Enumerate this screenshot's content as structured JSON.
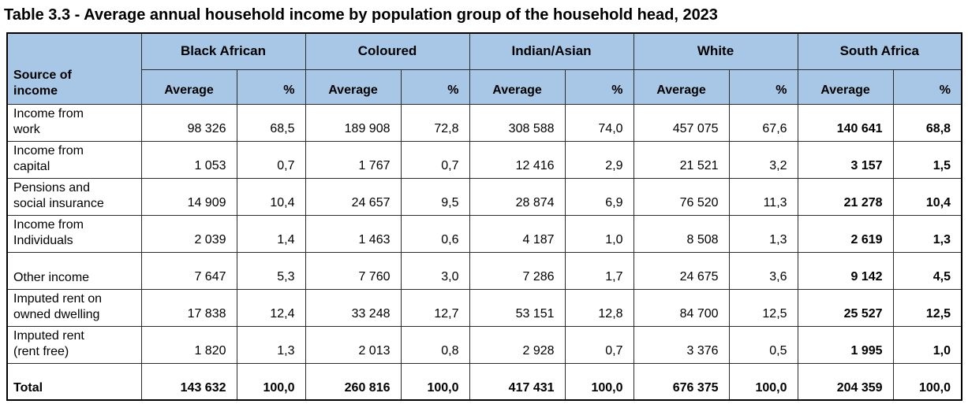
{
  "title": "Table 3.3 - Average annual household income by population group of the household head, 2023",
  "colors": {
    "header_bg": "#A8C7E7",
    "border": "#2b2b2b",
    "text": "#000000"
  },
  "table": {
    "row_header": "Source of\nincome",
    "sub_headers": [
      "Average",
      "%"
    ],
    "col_groups": [
      {
        "label": "Black African"
      },
      {
        "label": "Coloured"
      },
      {
        "label": "Indian/Asian"
      },
      {
        "label": "White"
      },
      {
        "label": "South Africa",
        "bold_values": true
      }
    ],
    "rows": [
      {
        "label": "Income from\nwork",
        "values": [
          [
            "98 326",
            "68,5"
          ],
          [
            "189 908",
            "72,8"
          ],
          [
            "308 588",
            "74,0"
          ],
          [
            "457 075",
            "67,6"
          ],
          [
            "140 641",
            "68,8"
          ]
        ]
      },
      {
        "label": "Income from\ncapital",
        "values": [
          [
            "1 053",
            "0,7"
          ],
          [
            "1 767",
            "0,7"
          ],
          [
            "12 416",
            "2,9"
          ],
          [
            "21 521",
            "3,2"
          ],
          [
            "3 157",
            "1,5"
          ]
        ]
      },
      {
        "label": "Pensions and\nsocial insurance",
        "values": [
          [
            "14 909",
            "10,4"
          ],
          [
            "24 657",
            "9,5"
          ],
          [
            "28 874",
            "6,9"
          ],
          [
            "76 520",
            "11,3"
          ],
          [
            "21 278",
            "10,4"
          ]
        ]
      },
      {
        "label": "Income from\nIndividuals",
        "values": [
          [
            "2 039",
            "1,4"
          ],
          [
            "1 463",
            "0,6"
          ],
          [
            "4 187",
            "1,0"
          ],
          [
            "8 508",
            "1,3"
          ],
          [
            "2 619",
            "1,3"
          ]
        ]
      },
      {
        "label": "Other income",
        "values": [
          [
            "7 647",
            "5,3"
          ],
          [
            "7 760",
            "3,0"
          ],
          [
            "7 286",
            "1,7"
          ],
          [
            "24 675",
            "3,6"
          ],
          [
            "9 142",
            "4,5"
          ]
        ]
      },
      {
        "label": "Imputed rent on\nowned dwelling",
        "values": [
          [
            "17 838",
            "12,4"
          ],
          [
            "33 248",
            "12,7"
          ],
          [
            "53 151",
            "12,8"
          ],
          [
            "84 700",
            "12,5"
          ],
          [
            "25 527",
            "12,5"
          ]
        ]
      },
      {
        "label": "Imputed rent\n(rent free)",
        "values": [
          [
            "1 820",
            "1,3"
          ],
          [
            "2 013",
            "0,8"
          ],
          [
            "2 928",
            "0,7"
          ],
          [
            "3 376",
            "0,5"
          ],
          [
            "1 995",
            "1,0"
          ]
        ]
      },
      {
        "label": "Total",
        "bold": true,
        "values": [
          [
            "143 632",
            "100,0"
          ],
          [
            "260 816",
            "100,0"
          ],
          [
            "417 431",
            "100,0"
          ],
          [
            "676 375",
            "100,0"
          ],
          [
            "204 359",
            "100,0"
          ]
        ]
      }
    ]
  },
  "chart_data": {
    "type": "table",
    "title": "Table 3.3 - Average annual household income by population group of the household head, 2023",
    "columns": [
      "Source of income",
      "Black African Average",
      "Black African %",
      "Coloured Average",
      "Coloured %",
      "Indian/Asian Average",
      "Indian/Asian %",
      "White Average",
      "White %",
      "South Africa Average",
      "South Africa %"
    ],
    "rows": [
      [
        "Income from work",
        98326,
        68.5,
        189908,
        72.8,
        308588,
        74.0,
        457075,
        67.6,
        140641,
        68.8
      ],
      [
        "Income from capital",
        1053,
        0.7,
        1767,
        0.7,
        12416,
        2.9,
        21521,
        3.2,
        3157,
        1.5
      ],
      [
        "Pensions and social insurance",
        14909,
        10.4,
        24657,
        9.5,
        28874,
        6.9,
        76520,
        11.3,
        21278,
        10.4
      ],
      [
        "Income from Individuals",
        2039,
        1.4,
        1463,
        0.6,
        4187,
        1.0,
        8508,
        1.3,
        2619,
        1.3
      ],
      [
        "Other income",
        7647,
        5.3,
        7760,
        3.0,
        7286,
        1.7,
        24675,
        3.6,
        9142,
        4.5
      ],
      [
        "Imputed rent on owned dwelling",
        17838,
        12.4,
        33248,
        12.7,
        53151,
        12.8,
        84700,
        12.5,
        25527,
        12.5
      ],
      [
        "Imputed rent (rent free)",
        1820,
        1.3,
        2013,
        0.8,
        2928,
        0.7,
        3376,
        0.5,
        1995,
        1.0
      ],
      [
        "Total",
        143632,
        100.0,
        260816,
        100.0,
        417431,
        100.0,
        676375,
        100.0,
        204359,
        100.0
      ]
    ]
  }
}
